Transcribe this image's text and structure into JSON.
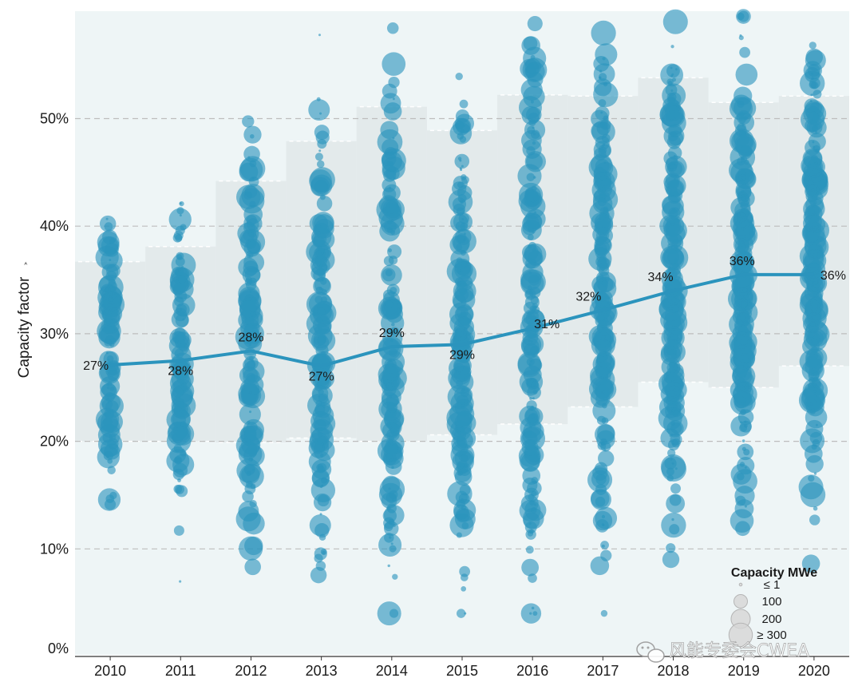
{
  "chart_data": {
    "type": "scatter",
    "ylabel": "Capacity factor",
    "ylim": [
      0,
      0.6
    ],
    "y_ticks": [
      {
        "value": 0,
        "label": "0%"
      },
      {
        "value": 0.1,
        "label": "10%"
      },
      {
        "value": 0.2,
        "label": "20%"
      },
      {
        "value": 0.3,
        "label": "30%"
      },
      {
        "value": 0.4,
        "label": "40%"
      },
      {
        "value": 0.5,
        "label": "50%"
      }
    ],
    "categories": [
      "2010",
      "2011",
      "2012",
      "2013",
      "2014",
      "2015",
      "2016",
      "2017",
      "2018",
      "2019",
      "2020"
    ],
    "median": {
      "values": [
        0.271,
        0.275,
        0.284,
        0.27,
        0.288,
        0.29,
        0.305,
        0.322,
        0.34,
        0.355,
        0.355
      ],
      "labels": [
        "27%",
        "28%",
        "28%",
        "27%",
        "29%",
        "29%",
        "31%",
        "32%",
        "34%",
        "36%",
        "36%"
      ],
      "color": "#2b94bd"
    },
    "band": {
      "p10": [
        0.2,
        0.2,
        0.199,
        0.203,
        0.2,
        0.206,
        0.216,
        0.232,
        0.255,
        0.25,
        0.27
      ],
      "p90": [
        0.367,
        0.381,
        0.442,
        0.479,
        0.511,
        0.489,
        0.522,
        0.521,
        0.538,
        0.515,
        0.521
      ],
      "color": "#e3eaeb"
    },
    "dot_color": "#2b94bd",
    "plot_background": "#eef5f6",
    "grid_color": "#bdbdbd",
    "legend": {
      "title": "Capacity MWe",
      "entries": [
        {
          "label": "≤ 1",
          "capacity": 1
        },
        {
          "label": "100",
          "capacity": 100
        },
        {
          "label": "200",
          "capacity": 200
        },
        {
          "label": "≥ 300",
          "capacity": 300
        }
      ],
      "position": "bottom-right"
    }
  },
  "watermark": {
    "text": "风能专委会CWEA",
    "icon": "wechat-icon"
  }
}
